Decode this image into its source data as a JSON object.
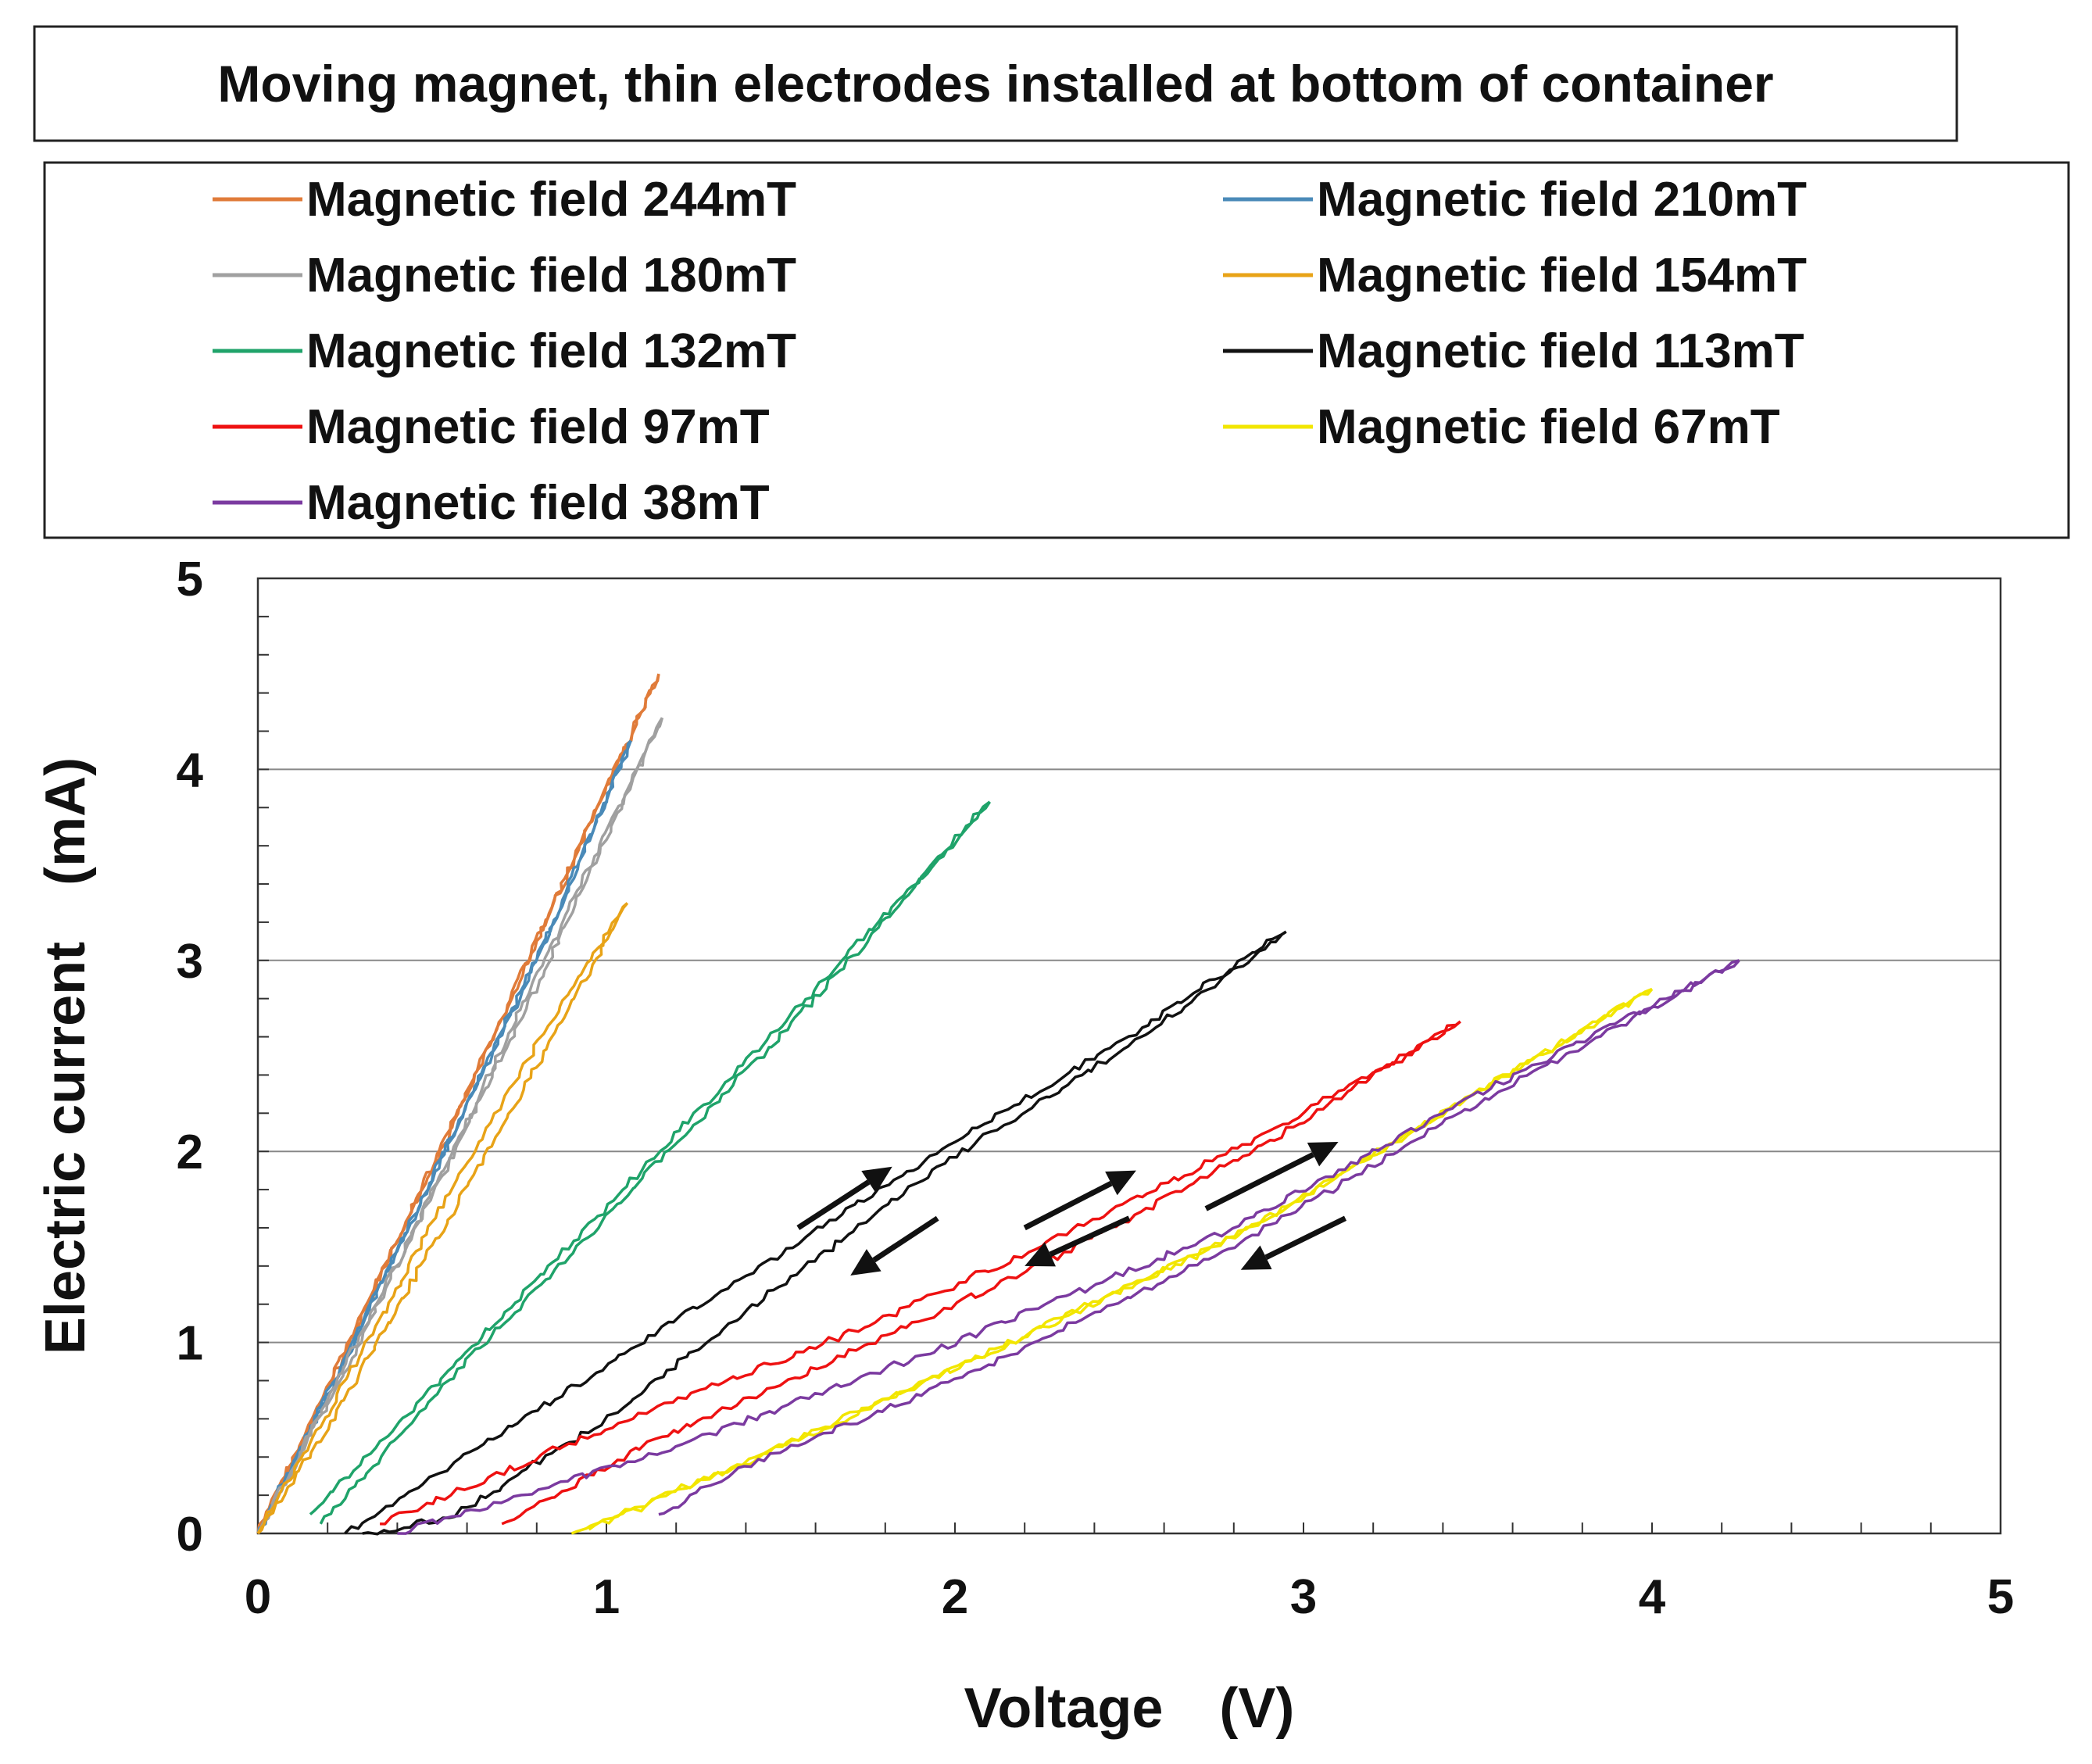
{
  "chart_data": {
    "type": "line",
    "title": "Moving magnet, thin electrodes installed at bottom of container",
    "xlabel": "Voltage　(V)",
    "ylabel": "Electric current　(mA)",
    "xlim": [
      0,
      5
    ],
    "ylim": [
      0,
      5
    ],
    "xticks": [
      "0",
      "1",
      "2",
      "3",
      "4",
      "5"
    ],
    "yticks": [
      "0",
      "1",
      "2",
      "3",
      "4",
      "5"
    ],
    "grid": "horizontal",
    "legend_position": "top",
    "series": [
      {
        "name": "Magnetic field 244mT",
        "color": "#E07B39",
        "up": [
          [
            0.0,
            0.0
          ],
          [
            0.3,
            1.15
          ],
          [
            0.6,
            2.3
          ],
          [
            0.9,
            3.5
          ],
          [
            1.15,
            4.5
          ]
        ],
        "down": [
          [
            1.15,
            4.5
          ],
          [
            0.85,
            3.3
          ],
          [
            0.55,
            2.1
          ],
          [
            0.25,
            0.95
          ],
          [
            0.0,
            0.0
          ]
        ]
      },
      {
        "name": "Magnetic field 210mT",
        "color": "#4A8AB8",
        "up": [
          [
            0.0,
            0.0
          ],
          [
            0.3,
            1.1
          ],
          [
            0.6,
            2.25
          ],
          [
            0.85,
            3.2
          ],
          [
            1.07,
            4.15
          ]
        ],
        "down": [
          [
            1.07,
            4.15
          ],
          [
            0.8,
            3.0
          ],
          [
            0.55,
            2.05
          ],
          [
            0.25,
            0.9
          ],
          [
            0.0,
            0.0
          ]
        ]
      },
      {
        "name": "Magnetic field 180mT",
        "color": "#A0A0A0",
        "up": [
          [
            0.0,
            0.0
          ],
          [
            0.3,
            1.05
          ],
          [
            0.6,
            2.15
          ],
          [
            0.9,
            3.3
          ],
          [
            1.16,
            4.27
          ]
        ],
        "down": [
          [
            1.16,
            4.27
          ],
          [
            0.85,
            3.05
          ],
          [
            0.55,
            1.95
          ],
          [
            0.25,
            0.85
          ],
          [
            0.0,
            0.0
          ]
        ]
      },
      {
        "name": "Magnetic field 154mT",
        "color": "#E8A317",
        "up": [
          [
            0.0,
            0.0
          ],
          [
            0.3,
            0.95
          ],
          [
            0.6,
            1.95
          ],
          [
            0.9,
            2.85
          ],
          [
            1.06,
            3.3
          ]
        ],
        "down": [
          [
            1.06,
            3.3
          ],
          [
            0.8,
            2.45
          ],
          [
            0.5,
            1.5
          ],
          [
            0.2,
            0.55
          ],
          [
            0.0,
            0.0
          ]
        ]
      },
      {
        "name": "Magnetic field 132mT",
        "color": "#1FA36A",
        "up": [
          [
            0.15,
            0.1
          ],
          [
            0.6,
            0.95
          ],
          [
            1.1,
            1.9
          ],
          [
            1.6,
            2.85
          ],
          [
            2.1,
            3.83
          ]
        ],
        "down": [
          [
            2.1,
            3.83
          ],
          [
            1.6,
            2.8
          ],
          [
            1.1,
            1.85
          ],
          [
            0.6,
            0.9
          ],
          [
            0.18,
            0.05
          ]
        ]
      },
      {
        "name": "Magnetic field 113mT",
        "color": "#111111",
        "up": [
          [
            0.25,
            0.0
          ],
          [
            0.8,
            0.65
          ],
          [
            1.4,
            1.35
          ],
          [
            2.0,
            2.05
          ],
          [
            2.5,
            2.6
          ],
          [
            2.95,
            3.15
          ]
        ],
        "down": [
          [
            2.95,
            3.15
          ],
          [
            2.5,
            2.55
          ],
          [
            2.0,
            1.98
          ],
          [
            1.5,
            1.3
          ],
          [
            1.0,
            0.6
          ],
          [
            0.55,
            0.08
          ],
          [
            0.3,
            0.0
          ]
        ]
      },
      {
        "name": "Magnetic field 97mT",
        "color": "#EE1111",
        "up": [
          [
            0.35,
            0.05
          ],
          [
            1.0,
            0.55
          ],
          [
            1.7,
            1.05
          ],
          [
            2.3,
            1.55
          ],
          [
            2.9,
            2.1
          ],
          [
            3.45,
            2.68
          ]
        ],
        "down": [
          [
            3.45,
            2.68
          ],
          [
            2.9,
            2.05
          ],
          [
            2.3,
            1.45
          ],
          [
            1.7,
            0.95
          ],
          [
            1.1,
            0.45
          ],
          [
            0.7,
            0.05
          ]
        ]
      },
      {
        "name": "Magnetic field 67mT",
        "color": "#F2E600",
        "up": [
          [
            0.9,
            0.0
          ],
          [
            1.5,
            0.45
          ],
          [
            2.1,
            0.95
          ],
          [
            2.8,
            1.55
          ],
          [
            3.4,
            2.2
          ],
          [
            4.0,
            2.85
          ]
        ],
        "down": [
          [
            4.0,
            2.85
          ],
          [
            3.4,
            2.2
          ],
          [
            2.8,
            1.55
          ],
          [
            2.1,
            0.95
          ],
          [
            1.5,
            0.45
          ],
          [
            0.95,
            0.02
          ]
        ]
      },
      {
        "name": "Magnetic field 38mT",
        "color": "#7B3AA0",
        "up": [
          [
            0.4,
            0.0
          ],
          [
            1.2,
            0.45
          ],
          [
            2.0,
            1.0
          ],
          [
            2.8,
            1.6
          ],
          [
            3.5,
            2.3
          ],
          [
            4.25,
            3.0
          ]
        ],
        "down": [
          [
            4.25,
            3.0
          ],
          [
            3.5,
            2.25
          ],
          [
            2.8,
            1.5
          ],
          [
            2.0,
            0.8
          ],
          [
            1.4,
            0.35
          ],
          [
            1.15,
            0.1
          ]
        ]
      }
    ],
    "annotations": [
      {
        "type": "arrow",
        "from": [
          1.55,
          1.6
        ],
        "to": [
          1.82,
          1.92
        ]
      },
      {
        "type": "arrow",
        "from": [
          1.95,
          1.65
        ],
        "to": [
          1.7,
          1.35
        ]
      },
      {
        "type": "arrow",
        "from": [
          2.2,
          1.6
        ],
        "to": [
          2.52,
          1.9
        ]
      },
      {
        "type": "arrow",
        "from": [
          2.5,
          1.65
        ],
        "to": [
          2.2,
          1.4
        ]
      },
      {
        "type": "arrow",
        "from": [
          2.72,
          1.7
        ],
        "to": [
          3.1,
          2.05
        ]
      },
      {
        "type": "arrow",
        "from": [
          3.12,
          1.65
        ],
        "to": [
          2.82,
          1.38
        ]
      }
    ]
  }
}
